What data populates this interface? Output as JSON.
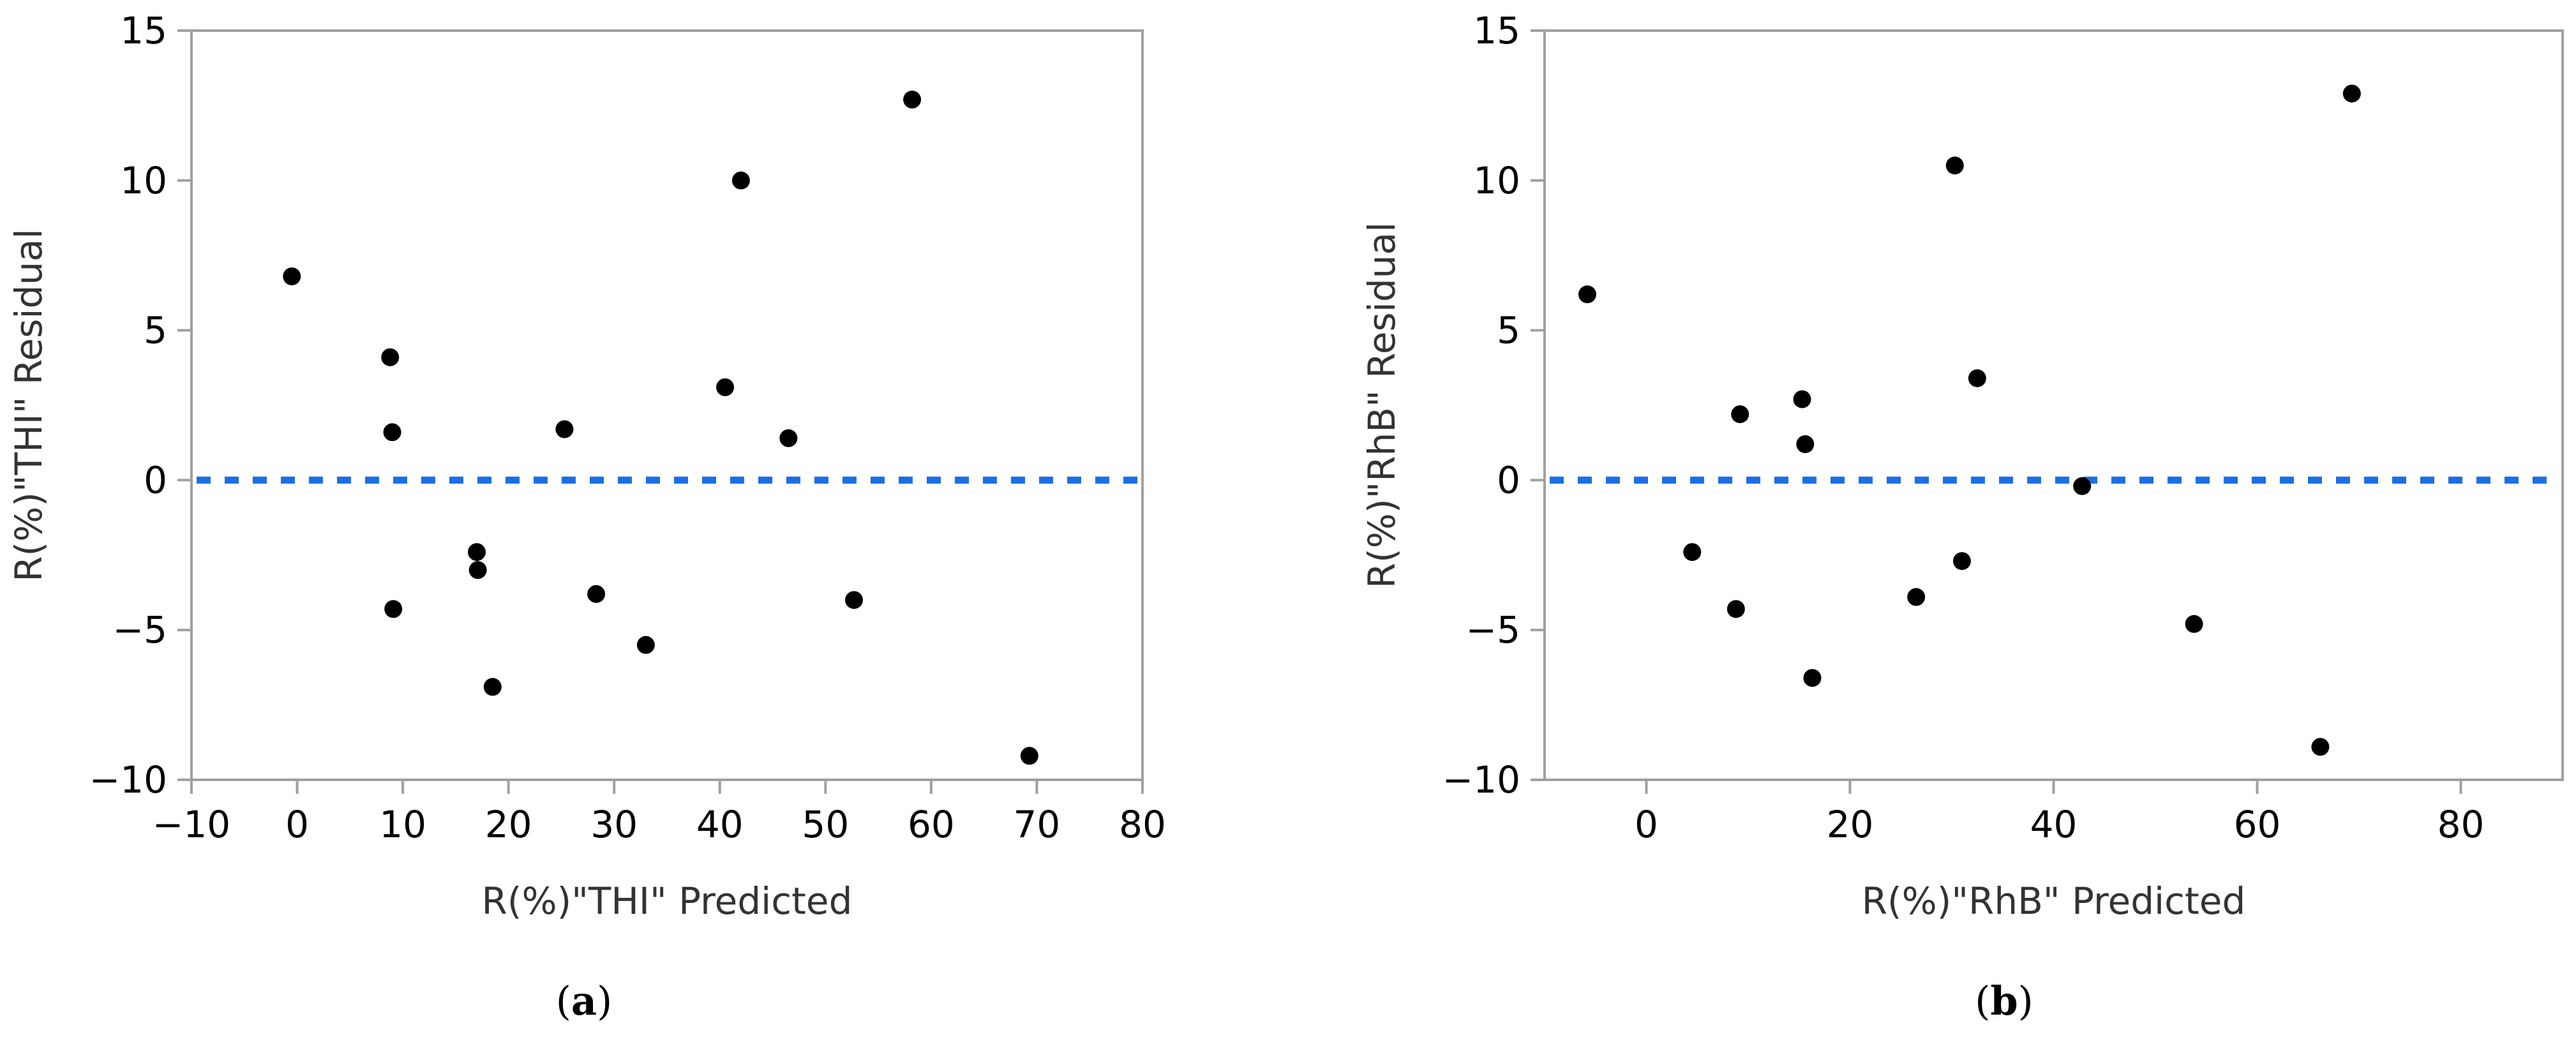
{
  "chart_data": [
    {
      "type": "scatter",
      "caption_letter": "a",
      "xlabel": "R(%)\"THI\" Predicted",
      "ylabel": "R(%)\"THI\" Residual",
      "xlim": [
        -10,
        80
      ],
      "ylim": [
        -10,
        15
      ],
      "xticks": [
        -10,
        0,
        10,
        20,
        30,
        40,
        50,
        60,
        70,
        80
      ],
      "yticks": [
        -10,
        -5,
        0,
        5,
        10,
        15
      ],
      "reference_line": {
        "y": 0,
        "style": "dashed",
        "color": "#1a6fe6"
      },
      "marker_color": "#000000",
      "points": [
        {
          "x": -0.5,
          "y": 6.8
        },
        {
          "x": 8.8,
          "y": 4.1
        },
        {
          "x": 9.0,
          "y": 1.6
        },
        {
          "x": 9.1,
          "y": -4.3
        },
        {
          "x": 17.0,
          "y": -2.4
        },
        {
          "x": 17.1,
          "y": -3.0
        },
        {
          "x": 18.5,
          "y": -6.9
        },
        {
          "x": 25.3,
          "y": 1.7
        },
        {
          "x": 28.3,
          "y": -3.8
        },
        {
          "x": 33.0,
          "y": -5.5
        },
        {
          "x": 40.5,
          "y": 3.1
        },
        {
          "x": 42.0,
          "y": 10.0
        },
        {
          "x": 46.5,
          "y": 1.4
        },
        {
          "x": 52.7,
          "y": -4.0
        },
        {
          "x": 58.2,
          "y": 12.7
        },
        {
          "x": 69.3,
          "y": -9.2
        }
      ]
    },
    {
      "type": "scatter",
      "caption_letter": "b",
      "xlabel": "R(%)\"RhB\" Predicted",
      "ylabel": "R(%)\"RhB\" Residual",
      "xlim": [
        -10,
        90
      ],
      "ylim": [
        -10,
        15
      ],
      "xticks": [
        0,
        20,
        40,
        60,
        80
      ],
      "yticks": [
        -10,
        -5,
        0,
        5,
        10,
        15
      ],
      "reference_line": {
        "y": 0,
        "style": "dashed",
        "color": "#1a6fe6"
      },
      "marker_color": "#000000",
      "points": [
        {
          "x": -5.8,
          "y": 6.2
        },
        {
          "x": 4.5,
          "y": -2.4
        },
        {
          "x": 8.8,
          "y": -4.3
        },
        {
          "x": 9.2,
          "y": 2.2
        },
        {
          "x": 15.3,
          "y": 2.7
        },
        {
          "x": 15.6,
          "y": 1.2
        },
        {
          "x": 16.3,
          "y": -6.6
        },
        {
          "x": 26.5,
          "y": -3.9
        },
        {
          "x": 30.3,
          "y": 10.5
        },
        {
          "x": 31.0,
          "y": -2.7
        },
        {
          "x": 32.5,
          "y": 3.4
        },
        {
          "x": 42.8,
          "y": -0.2
        },
        {
          "x": 53.8,
          "y": -4.8
        },
        {
          "x": 66.2,
          "y": -8.9
        },
        {
          "x": 69.3,
          "y": 12.9
        }
      ]
    }
  ]
}
